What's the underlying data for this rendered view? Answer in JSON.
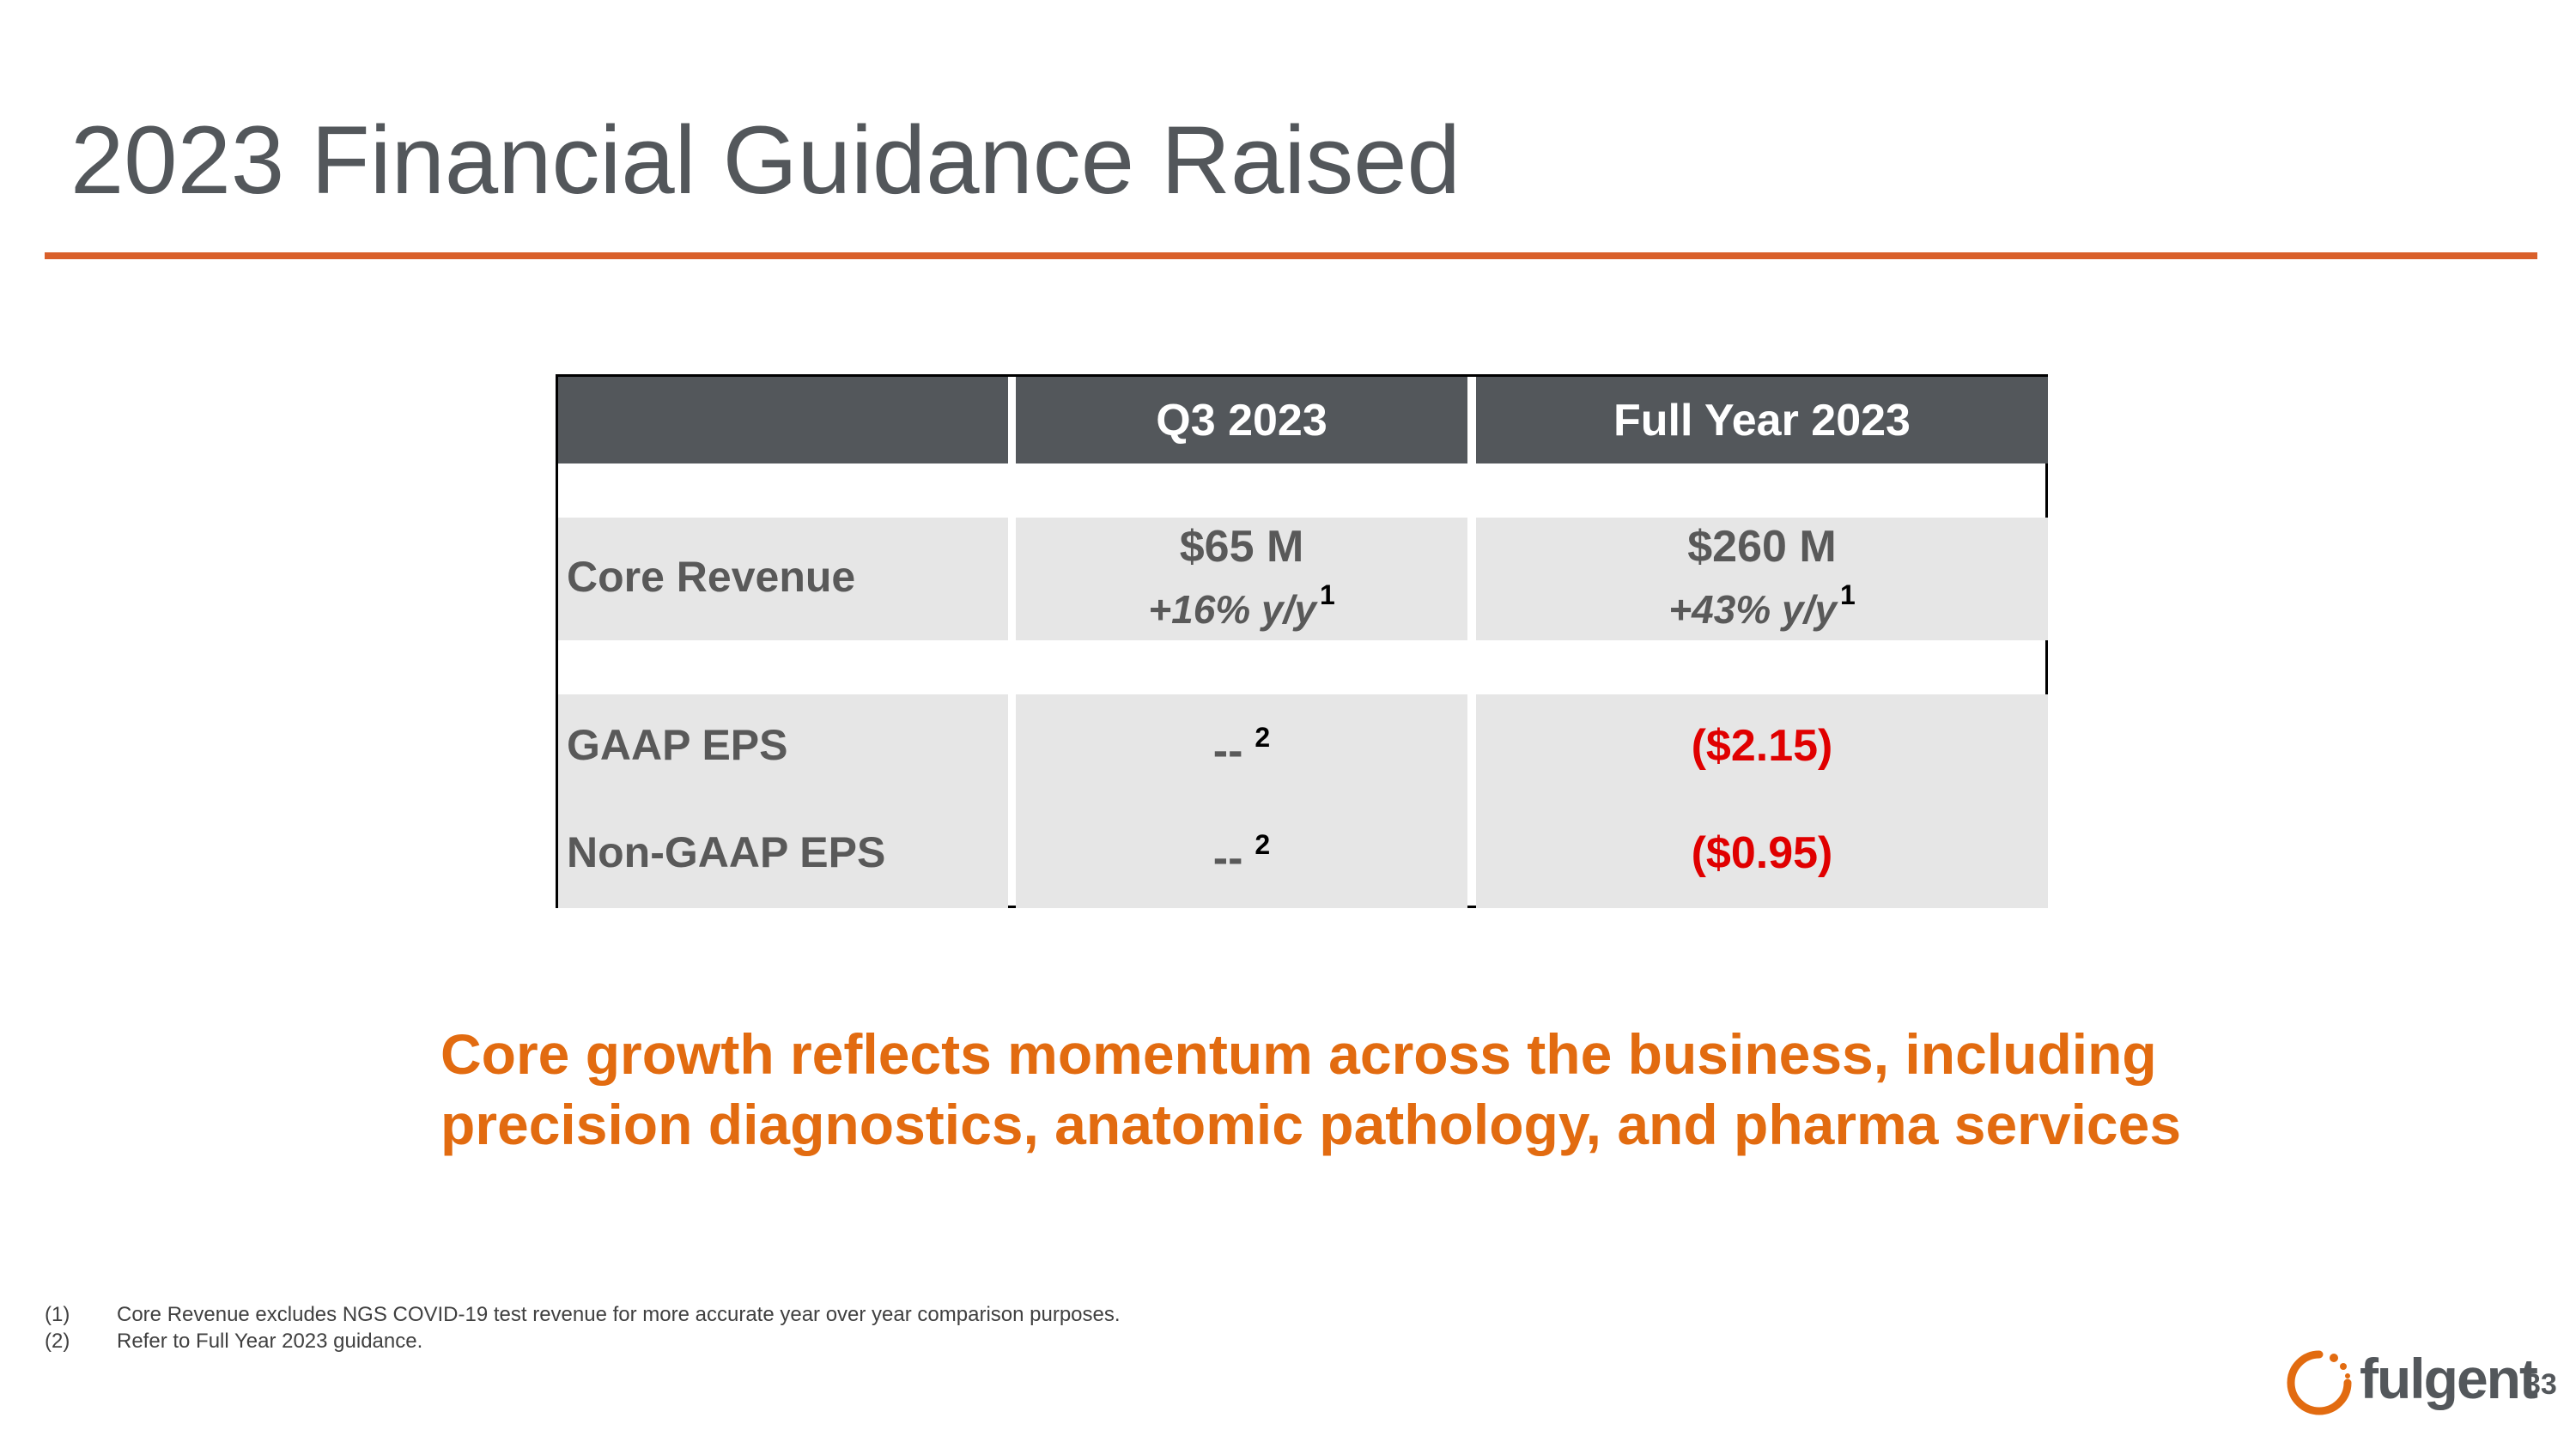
{
  "title": "2023 Financial Guidance Raised",
  "table": {
    "columns": [
      "Q3 2023",
      "Full Year 2023"
    ],
    "rows": [
      {
        "label": "Core Revenue",
        "cells": [
          {
            "value": "$65 M",
            "growth": "+16% y/y",
            "note": "1"
          },
          {
            "value": "$260 M",
            "growth": "+43% y/y",
            "note": "1"
          }
        ]
      },
      {
        "label": "GAAP EPS",
        "cells": [
          {
            "value": "--",
            "note": "2"
          },
          {
            "value": "($2.15)"
          }
        ]
      },
      {
        "label": "Non-GAAP EPS",
        "cells": [
          {
            "value": "--",
            "note": "2"
          },
          {
            "value": "($0.95)"
          }
        ]
      }
    ]
  },
  "callout": [
    "Core growth reflects momentum across the business, including",
    "precision diagnostics, anatomic pathology, and pharma services"
  ],
  "footnotes": [
    {
      "marker": "(1)",
      "text": "Core Revenue excludes NGS COVID-19 test revenue for more accurate year over year comparison purposes."
    },
    {
      "marker": "(2)",
      "text": "Refer to Full Year 2023 guidance."
    }
  ],
  "logo": "fulgent",
  "page_number": "33"
}
